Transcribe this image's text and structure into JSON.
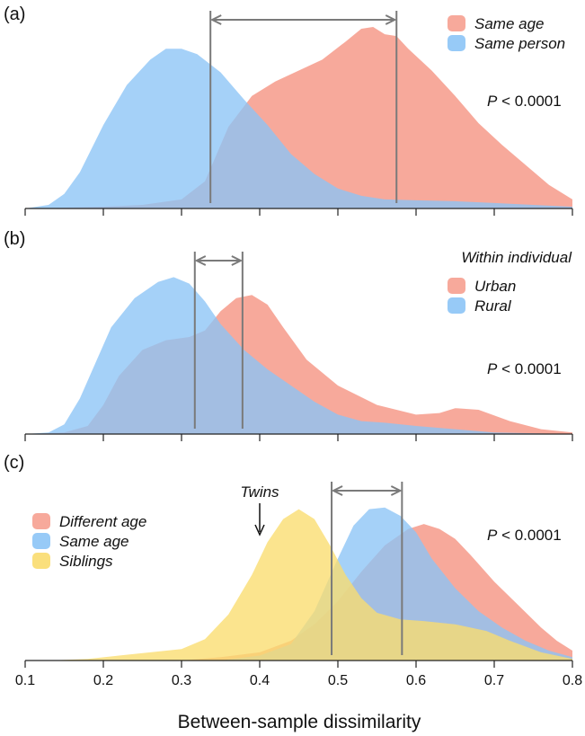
{
  "chart_data": [
    {
      "panel": "(a)",
      "type": "area",
      "legend_title": "",
      "legend_placement": "top-right",
      "p_value": {
        "symbol": "P",
        "text": " < 0.0001"
      },
      "bracket": [
        0.337,
        0.575
      ],
      "series": [
        {
          "name": "Same age",
          "color": "#f6a090",
          "points": [
            [
              0.1,
              0.0
            ],
            [
              0.2,
              0.01
            ],
            [
              0.25,
              0.02
            ],
            [
              0.3,
              0.05
            ],
            [
              0.33,
              0.15
            ],
            [
              0.36,
              0.45
            ],
            [
              0.39,
              0.62
            ],
            [
              0.42,
              0.7
            ],
            [
              0.45,
              0.76
            ],
            [
              0.48,
              0.82
            ],
            [
              0.51,
              0.92
            ],
            [
              0.53,
              0.99
            ],
            [
              0.545,
              1.0
            ],
            [
              0.56,
              0.96
            ],
            [
              0.575,
              0.95
            ],
            [
              0.59,
              0.88
            ],
            [
              0.62,
              0.76
            ],
            [
              0.65,
              0.62
            ],
            [
              0.68,
              0.47
            ],
            [
              0.71,
              0.35
            ],
            [
              0.74,
              0.24
            ],
            [
              0.77,
              0.13
            ],
            [
              0.8,
              0.05
            ]
          ]
        },
        {
          "name": "Same person",
          "color": "#8cc4f6",
          "points": [
            [
              0.1,
              0.0
            ],
            [
              0.13,
              0.02
            ],
            [
              0.15,
              0.08
            ],
            [
              0.17,
              0.2
            ],
            [
              0.2,
              0.46
            ],
            [
              0.23,
              0.68
            ],
            [
              0.26,
              0.82
            ],
            [
              0.28,
              0.88
            ],
            [
              0.3,
              0.88
            ],
            [
              0.32,
              0.85
            ],
            [
              0.35,
              0.75
            ],
            [
              0.38,
              0.6
            ],
            [
              0.41,
              0.46
            ],
            [
              0.44,
              0.3
            ],
            [
              0.47,
              0.19
            ],
            [
              0.5,
              0.11
            ],
            [
              0.53,
              0.07
            ],
            [
              0.56,
              0.05
            ],
            [
              0.6,
              0.045
            ],
            [
              0.65,
              0.04
            ],
            [
              0.7,
              0.03
            ],
            [
              0.75,
              0.02
            ],
            [
              0.8,
              0.01
            ]
          ]
        }
      ]
    },
    {
      "panel": "(b)",
      "type": "area",
      "legend_title": "Within individual",
      "legend_placement": "top-right",
      "p_value": {
        "symbol": "P",
        "text": " < 0.0001"
      },
      "bracket": [
        0.317,
        0.378
      ],
      "series": [
        {
          "name": "Urban",
          "color": "#f6a090",
          "points": [
            [
              0.1,
              0.0
            ],
            [
              0.15,
              0.01
            ],
            [
              0.18,
              0.05
            ],
            [
              0.2,
              0.18
            ],
            [
              0.22,
              0.36
            ],
            [
              0.25,
              0.52
            ],
            [
              0.28,
              0.58
            ],
            [
              0.31,
              0.6
            ],
            [
              0.33,
              0.64
            ],
            [
              0.35,
              0.76
            ],
            [
              0.37,
              0.84
            ],
            [
              0.39,
              0.86
            ],
            [
              0.41,
              0.8
            ],
            [
              0.43,
              0.66
            ],
            [
              0.46,
              0.46
            ],
            [
              0.5,
              0.3
            ],
            [
              0.55,
              0.18
            ],
            [
              0.6,
              0.12
            ],
            [
              0.63,
              0.13
            ],
            [
              0.65,
              0.16
            ],
            [
              0.68,
              0.15
            ],
            [
              0.72,
              0.08
            ],
            [
              0.76,
              0.03
            ],
            [
              0.8,
              0.01
            ]
          ]
        },
        {
          "name": "Rural",
          "color": "#8cc4f6",
          "points": [
            [
              0.1,
              0.0
            ],
            [
              0.13,
              0.01
            ],
            [
              0.15,
              0.06
            ],
            [
              0.17,
              0.22
            ],
            [
              0.19,
              0.44
            ],
            [
              0.21,
              0.66
            ],
            [
              0.24,
              0.84
            ],
            [
              0.27,
              0.94
            ],
            [
              0.29,
              0.97
            ],
            [
              0.31,
              0.93
            ],
            [
              0.33,
              0.82
            ],
            [
              0.35,
              0.68
            ],
            [
              0.38,
              0.52
            ],
            [
              0.41,
              0.4
            ],
            [
              0.44,
              0.3
            ],
            [
              0.47,
              0.2
            ],
            [
              0.5,
              0.12
            ],
            [
              0.53,
              0.08
            ],
            [
              0.56,
              0.07
            ],
            [
              0.6,
              0.05
            ],
            [
              0.65,
              0.03
            ],
            [
              0.7,
              0.01
            ],
            [
              0.8,
              0.0
            ]
          ]
        }
      ]
    },
    {
      "panel": "(c)",
      "type": "area",
      "legend_title": "",
      "legend_placement": "top-left",
      "p_value": {
        "symbol": "P",
        "text": " < 0.0001"
      },
      "bracket": [
        0.492,
        0.582
      ],
      "annotation": {
        "text": "Twins",
        "x": 0.4
      },
      "series": [
        {
          "name": "Different age",
          "color": "#f6a090",
          "points": [
            [
              0.3,
              0.0
            ],
            [
              0.35,
              0.02
            ],
            [
              0.4,
              0.05
            ],
            [
              0.44,
              0.12
            ],
            [
              0.47,
              0.22
            ],
            [
              0.5,
              0.36
            ],
            [
              0.53,
              0.54
            ],
            [
              0.56,
              0.7
            ],
            [
              0.59,
              0.8
            ],
            [
              0.61,
              0.83
            ],
            [
              0.63,
              0.8
            ],
            [
              0.65,
              0.74
            ],
            [
              0.67,
              0.64
            ],
            [
              0.7,
              0.48
            ],
            [
              0.73,
              0.34
            ],
            [
              0.76,
              0.2
            ],
            [
              0.78,
              0.12
            ],
            [
              0.8,
              0.06
            ]
          ]
        },
        {
          "name": "Same age",
          "color": "#8cc4f6",
          "points": [
            [
              0.35,
              0.0
            ],
            [
              0.4,
              0.03
            ],
            [
              0.44,
              0.1
            ],
            [
              0.47,
              0.3
            ],
            [
              0.5,
              0.62
            ],
            [
              0.52,
              0.82
            ],
            [
              0.54,
              0.92
            ],
            [
              0.56,
              0.93
            ],
            [
              0.58,
              0.88
            ],
            [
              0.6,
              0.78
            ],
            [
              0.62,
              0.62
            ],
            [
              0.65,
              0.44
            ],
            [
              0.68,
              0.3
            ],
            [
              0.71,
              0.2
            ],
            [
              0.74,
              0.12
            ],
            [
              0.77,
              0.06
            ],
            [
              0.8,
              0.02
            ]
          ]
        },
        {
          "name": "Siblings",
          "color": "#fadc6e",
          "points": [
            [
              0.13,
              0.0
            ],
            [
              0.18,
              0.01
            ],
            [
              0.22,
              0.03
            ],
            [
              0.26,
              0.05
            ],
            [
              0.3,
              0.07
            ],
            [
              0.33,
              0.13
            ],
            [
              0.36,
              0.28
            ],
            [
              0.39,
              0.52
            ],
            [
              0.41,
              0.72
            ],
            [
              0.43,
              0.86
            ],
            [
              0.45,
              0.92
            ],
            [
              0.47,
              0.86
            ],
            [
              0.49,
              0.7
            ],
            [
              0.51,
              0.52
            ],
            [
              0.53,
              0.38
            ],
            [
              0.55,
              0.29
            ],
            [
              0.58,
              0.25
            ],
            [
              0.61,
              0.24
            ],
            [
              0.65,
              0.22
            ],
            [
              0.69,
              0.18
            ],
            [
              0.72,
              0.12
            ],
            [
              0.76,
              0.05
            ],
            [
              0.8,
              0.01
            ]
          ]
        }
      ]
    }
  ],
  "x_axis": {
    "label": "Between-sample dissimilarity",
    "range": [
      0.1,
      0.8
    ],
    "ticks": [
      0.1,
      0.2,
      0.3,
      0.4,
      0.5,
      0.6,
      0.7,
      0.8
    ],
    "tick_labels": [
      "0.1",
      "0.2",
      "0.3",
      "0.4",
      "0.5",
      "0.6",
      "0.7",
      "0.8"
    ]
  }
}
